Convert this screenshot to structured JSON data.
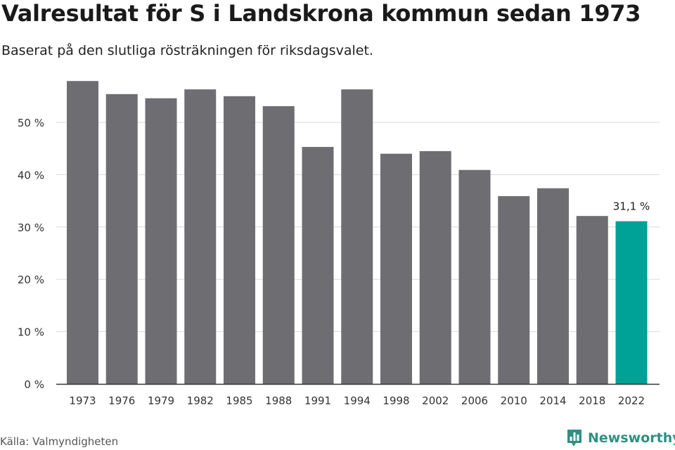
{
  "header": {
    "title": "Valresultat för S i Landskrona kommun sedan 1973",
    "subtitle": "Baserat på den slutliga rösträkningen för riksdagsvalet."
  },
  "footer": {
    "source": "Källa: Valmyndigheten",
    "brand": "Newsworthy"
  },
  "colors": {
    "bar": "#6e6d72",
    "highlight": "#00a196",
    "grid": "#d9d9d9",
    "axis": "#333333",
    "brand": "#2f8f83"
  },
  "icons": {
    "brand_logo": "bar-chart-speech-bubble-icon"
  },
  "chart_data": {
    "type": "bar",
    "title": "Valresultat för S i Landskrona kommun sedan 1973",
    "subtitle": "Baserat på den slutliga rösträkningen för riksdagsvalet.",
    "xlabel": "",
    "ylabel": "",
    "categories": [
      "1973",
      "1976",
      "1979",
      "1982",
      "1985",
      "1988",
      "1991",
      "1994",
      "1998",
      "2002",
      "2006",
      "2010",
      "2014",
      "2018",
      "2022"
    ],
    "values": [
      57.9,
      55.4,
      54.6,
      56.3,
      55.0,
      53.1,
      45.3,
      56.3,
      44.0,
      44.5,
      40.9,
      35.9,
      37.4,
      32.1,
      31.1
    ],
    "yticks": [
      0,
      10,
      20,
      30,
      40,
      50
    ],
    "ytick_labels": [
      "0 %",
      "10 %",
      "20 %",
      "30 %",
      "40 %",
      "50 %"
    ],
    "ylim": [
      0,
      60
    ],
    "grid": true,
    "highlight_index": 14,
    "annotations": [
      {
        "category": "2022",
        "text": "31,1 %"
      }
    ]
  }
}
